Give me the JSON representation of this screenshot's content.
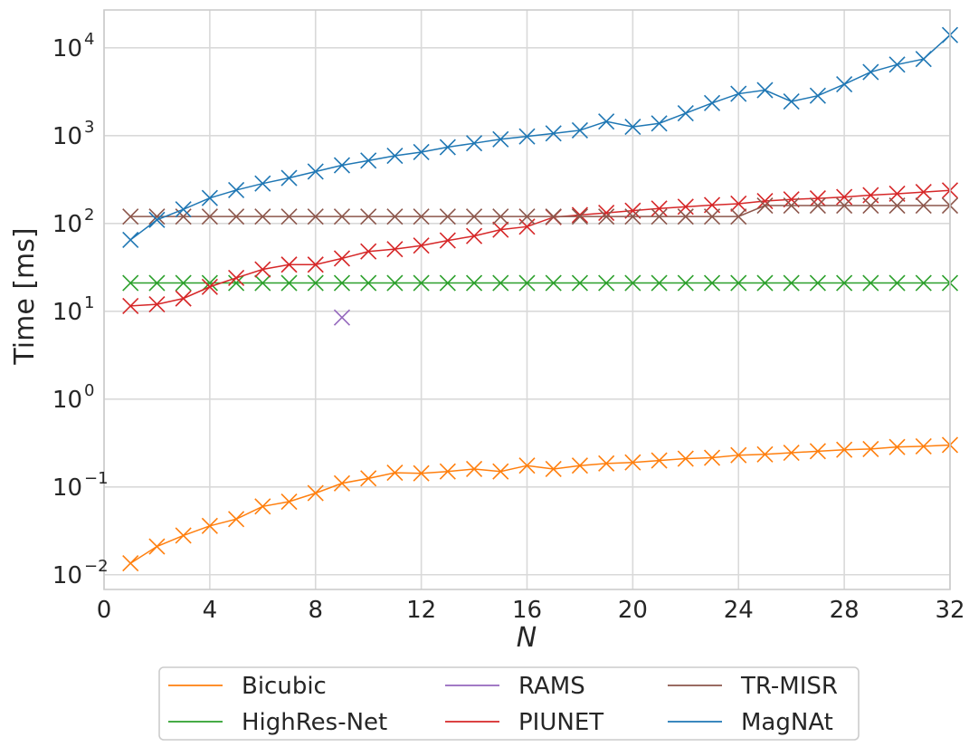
{
  "chart_data": {
    "type": "line",
    "xlabel": "N",
    "ylabel": "Time [ms]",
    "xlim": [
      0,
      32
    ],
    "ylim": [
      0.0068,
      27000
    ],
    "yscale": "log",
    "x_ticks": [
      "0",
      "4",
      "8",
      "12",
      "16",
      "20",
      "24",
      "28",
      "32"
    ],
    "y_ticks": [
      {
        "base": "10",
        "exp": "−2",
        "value": 0.01
      },
      {
        "base": "10",
        "exp": "−1",
        "value": 0.1
      },
      {
        "base": "10",
        "exp": "0",
        "value": 1
      },
      {
        "base": "10",
        "exp": "1",
        "value": 10
      },
      {
        "base": "10",
        "exp": "2",
        "value": 100
      },
      {
        "base": "10",
        "exp": "3",
        "value": 1000
      },
      {
        "base": "10",
        "exp": "4",
        "value": 10000
      }
    ],
    "grid": true,
    "legend_position": "bottom-outside",
    "marker": "x",
    "series": [
      {
        "name": "Bicubic",
        "color": "#ff7f0e",
        "x": [
          1,
          2,
          3,
          4,
          5,
          6,
          7,
          8,
          9,
          10,
          11,
          12,
          13,
          14,
          15,
          16,
          17,
          18,
          19,
          20,
          21,
          22,
          23,
          24,
          25,
          26,
          27,
          28,
          29,
          30,
          31,
          32
        ],
        "y": [
          0.0135,
          0.021,
          0.028,
          0.036,
          0.043,
          0.06,
          0.068,
          0.085,
          0.11,
          0.125,
          0.145,
          0.143,
          0.15,
          0.16,
          0.15,
          0.175,
          0.16,
          0.175,
          0.185,
          0.19,
          0.2,
          0.21,
          0.215,
          0.23,
          0.235,
          0.245,
          0.255,
          0.265,
          0.27,
          0.285,
          0.29,
          0.3
        ]
      },
      {
        "name": "HighRes-Net",
        "color": "#2ca02c",
        "x": [
          1,
          2,
          3,
          4,
          5,
          6,
          7,
          8,
          9,
          10,
          11,
          12,
          13,
          14,
          15,
          16,
          17,
          18,
          19,
          20,
          21,
          22,
          23,
          24,
          25,
          26,
          27,
          28,
          29,
          30,
          31,
          32
        ],
        "y": [
          21,
          21,
          21,
          21,
          21,
          21,
          21,
          21,
          21,
          21,
          21,
          21,
          21,
          21,
          21,
          21,
          21,
          21,
          21,
          21,
          21,
          21,
          21,
          21,
          21,
          21,
          21,
          21,
          21,
          21,
          21,
          21
        ]
      },
      {
        "name": "RAMS",
        "color": "#9467bd",
        "x": [
          9
        ],
        "y": [
          8.5
        ]
      },
      {
        "name": "PIUNET",
        "color": "#d62728",
        "x": [
          1,
          2,
          3,
          4,
          5,
          6,
          7,
          8,
          9,
          10,
          11,
          12,
          13,
          14,
          15,
          16,
          17,
          18,
          19,
          20,
          21,
          22,
          23,
          24,
          25,
          26,
          27,
          28,
          29,
          30,
          31,
          32
        ],
        "y": [
          11.5,
          12,
          14,
          19,
          24,
          30,
          34,
          34,
          40,
          48,
          51,
          56,
          64,
          72,
          85,
          92,
          118,
          125,
          132,
          140,
          148,
          155,
          162,
          168,
          180,
          188,
          193,
          200,
          210,
          218,
          228,
          238
        ]
      },
      {
        "name": "TR-MISR",
        "color": "#8c564b",
        "x": [
          1,
          2,
          3,
          4,
          5,
          6,
          7,
          8,
          9,
          10,
          11,
          12,
          13,
          14,
          15,
          16,
          17,
          18,
          19,
          20,
          21,
          22,
          23,
          24,
          25,
          26,
          27,
          28,
          29,
          30,
          31,
          32
        ],
        "y": [
          120,
          120,
          120,
          120,
          120,
          120,
          120,
          120,
          120,
          120,
          120,
          120,
          120,
          120,
          120,
          120,
          120,
          120,
          120,
          120,
          120,
          120,
          120,
          120,
          160,
          160,
          160,
          160,
          160,
          160,
          160,
          160
        ]
      },
      {
        "name": "MagNAt",
        "color": "#1f77b4",
        "x": [
          1,
          2,
          3,
          4,
          5,
          6,
          7,
          8,
          9,
          10,
          11,
          12,
          13,
          14,
          15,
          16,
          17,
          18,
          19,
          20,
          21,
          22,
          23,
          24,
          25,
          26,
          27,
          28,
          29,
          30,
          31,
          32
        ],
        "y": [
          65,
          110,
          145,
          195,
          240,
          285,
          330,
          390,
          460,
          520,
          590,
          650,
          740,
          820,
          910,
          980,
          1060,
          1150,
          1450,
          1260,
          1380,
          1800,
          2350,
          3000,
          3300,
          2450,
          2850,
          3850,
          5300,
          6450,
          7450,
          14000
        ]
      }
    ]
  }
}
